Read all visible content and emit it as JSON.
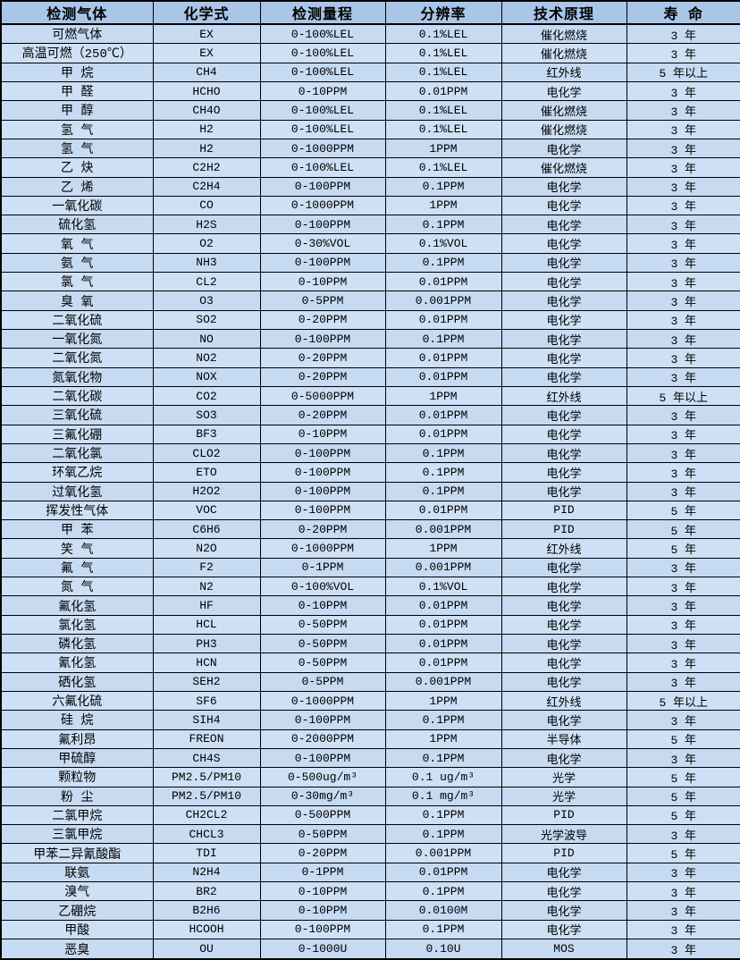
{
  "table": {
    "columns": [
      "检测气体",
      "化学式",
      "检测量程",
      "分辨率",
      "技术原理",
      "寿 命"
    ],
    "column_names": [
      "gas-name",
      "formula",
      "range",
      "resolution",
      "principle",
      "lifespan"
    ],
    "colors": {
      "header_bg": "#a9c6e8",
      "row_bg": "#c6daf2",
      "row_alt_bg": "#cde0f5",
      "grid": "#000000",
      "text": "#000000"
    },
    "rows": [
      [
        "可燃气体",
        "EX",
        "0-100%LEL",
        "0.1%LEL",
        "催化燃烧",
        "3 年"
      ],
      [
        "高温可燃（250℃）",
        "EX",
        "0-100%LEL",
        "0.1%LEL",
        "催化燃烧",
        "3 年"
      ],
      [
        "甲 烷",
        "CH4",
        "0-100%LEL",
        "0.1%LEL",
        "红外线",
        "5 年以上"
      ],
      [
        "甲 醛",
        "HCHO",
        "0-10PPM",
        "0.01PPM",
        "电化学",
        "3 年"
      ],
      [
        "甲 醇",
        "CH4O",
        "0-100%LEL",
        "0.1%LEL",
        "催化燃烧",
        "3 年"
      ],
      [
        "氢 气",
        "H2",
        "0-100%LEL",
        "0.1%LEL",
        "催化燃烧",
        "3 年"
      ],
      [
        "氢 气",
        "H2",
        "0-1000PPM",
        "1PPM",
        "电化学",
        "3 年"
      ],
      [
        "乙 炔",
        "C2H2",
        "0-100%LEL",
        "0.1%LEL",
        "催化燃烧",
        "3 年"
      ],
      [
        "乙 烯",
        "C2H4",
        "0-100PPM",
        "0.1PPM",
        "电化学",
        "3 年"
      ],
      [
        "一氧化碳",
        "CO",
        "0-1000PPM",
        "1PPM",
        "电化学",
        "3 年"
      ],
      [
        "硫化氢",
        "H2S",
        "0-100PPM",
        "0.1PPM",
        "电化学",
        "3 年"
      ],
      [
        "氧 气",
        "O2",
        "0-30%VOL",
        "0.1%VOL",
        "电化学",
        "3 年"
      ],
      [
        "氨 气",
        "NH3",
        "0-100PPM",
        "0.1PPM",
        "电化学",
        "3 年"
      ],
      [
        "氯 气",
        "CL2",
        "0-10PPM",
        "0.01PPM",
        "电化学",
        "3 年"
      ],
      [
        "臭 氧",
        "O3",
        "0-5PPM",
        "0.001PPM",
        "电化学",
        "3 年"
      ],
      [
        "二氧化硫",
        "SO2",
        "0-20PPM",
        "0.01PPM",
        "电化学",
        "3 年"
      ],
      [
        "一氧化氮",
        "NO",
        "0-100PPM",
        "0.1PPM",
        "电化学",
        "3 年"
      ],
      [
        "二氧化氮",
        "NO2",
        "0-20PPM",
        "0.01PPM",
        "电化学",
        "3 年"
      ],
      [
        "氮氧化物",
        "NOX",
        "0-20PPM",
        "0.01PPM",
        "电化学",
        "3 年"
      ],
      [
        "二氧化碳",
        "CO2",
        "0-5000PPM",
        "1PPM",
        "红外线",
        "5 年以上"
      ],
      [
        "三氧化硫",
        "SO3",
        "0-20PPM",
        "0.01PPM",
        "电化学",
        "3 年"
      ],
      [
        "三氟化硼",
        "BF3",
        "0-10PPM",
        "0.01PPM",
        "电化学",
        "3 年"
      ],
      [
        "二氧化氯",
        "CLO2",
        "0-100PPM",
        "0.1PPM",
        "电化学",
        "3 年"
      ],
      [
        "环氧乙烷",
        "ETO",
        "0-100PPM",
        "0.1PPM",
        "电化学",
        "3 年"
      ],
      [
        "过氧化氢",
        "H2O2",
        "0-100PPM",
        "0.1PPM",
        "电化学",
        "3 年"
      ],
      [
        "挥发性气体",
        "VOC",
        "0-100PPM",
        "0.01PPM",
        "PID",
        "5 年"
      ],
      [
        "甲 苯",
        "C6H6",
        "0-20PPM",
        "0.001PPM",
        "PID",
        "5 年"
      ],
      [
        "笑 气",
        "N2O",
        "0-1000PPM",
        "1PPM",
        "红外线",
        "5 年"
      ],
      [
        "氟 气",
        "F2",
        "0-1PPM",
        "0.001PPM",
        "电化学",
        "3 年"
      ],
      [
        "氮 气",
        "N2",
        "0-100%VOL",
        "0.1%VOL",
        "电化学",
        "3 年"
      ],
      [
        "氟化氢",
        "HF",
        "0-10PPM",
        "0.01PPM",
        "电化学",
        "3 年"
      ],
      [
        "氯化氢",
        "HCL",
        "0-50PPM",
        "0.01PPM",
        "电化学",
        "3 年"
      ],
      [
        "磷化氢",
        "PH3",
        "0-50PPM",
        "0.01PPM",
        "电化学",
        "3 年"
      ],
      [
        "氰化氢",
        "HCN",
        "0-50PPM",
        "0.01PPM",
        "电化学",
        "3 年"
      ],
      [
        "硒化氢",
        "SEH2",
        "0-5PPM",
        "0.001PPM",
        "电化学",
        "3 年"
      ],
      [
        "六氟化硫",
        "SF6",
        "0-1000PPM",
        "1PPM",
        "红外线",
        "5 年以上"
      ],
      [
        "硅 烷",
        "SIH4",
        "0-100PPM",
        "0.1PPM",
        "电化学",
        "3 年"
      ],
      [
        "氟利昂",
        "FREON",
        "0-2000PPM",
        "1PPM",
        "半导体",
        "5 年"
      ],
      [
        "甲硫醇",
        "CH4S",
        "0-100PPM",
        "0.1PPM",
        "电化学",
        "3 年"
      ],
      [
        "颗粒物",
        "PM2.5/PM10",
        "0-500ug/m³",
        "0.1 ug/m³",
        "光学",
        "5 年"
      ],
      [
        "粉 尘",
        "PM2.5/PM10",
        "0-30mg/m³",
        "0.1 mg/m³",
        "光学",
        "5 年"
      ],
      [
        "二氯甲烷",
        "CH2CL2",
        "0-500PPM",
        "0.1PPM",
        "PID",
        "5 年"
      ],
      [
        "三氯甲烷",
        "CHCL3",
        "0-50PPM",
        "0.1PPM",
        "光学波导",
        "3 年"
      ],
      [
        "甲苯二异氰酸酯",
        "TDI",
        "0-20PPM",
        "0.001PPM",
        "PID",
        "5 年"
      ],
      [
        "联氨",
        "N2H4",
        "0-1PPM",
        "0.01PPM",
        "电化学",
        "3 年"
      ],
      [
        "溴气",
        "BR2",
        "0-10PPM",
        "0.1PPM",
        "电化学",
        "3 年"
      ],
      [
        "乙硼烷",
        "B2H6",
        "0-10PPM",
        "0.0100M",
        "电化学",
        "3 年"
      ],
      [
        "甲酸",
        "HCOOH",
        "0-100PPM",
        "0.1PPM",
        "电化学",
        "3 年"
      ],
      [
        "恶臭",
        "OU",
        "0-1000U",
        "0.10U",
        "MOS",
        "3 年"
      ]
    ]
  }
}
